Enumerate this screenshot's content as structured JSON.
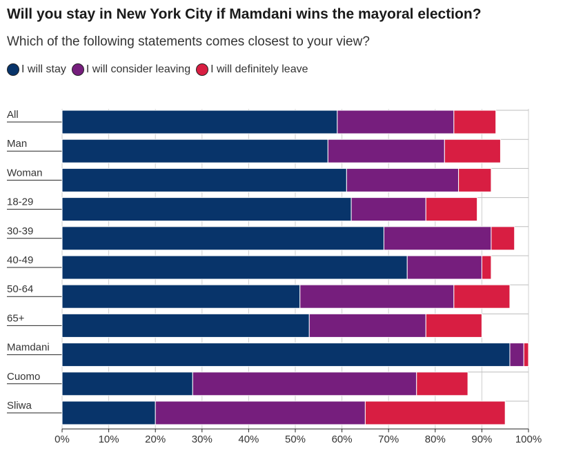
{
  "chart_data": {
    "type": "bar",
    "orientation": "horizontal",
    "stacked": true,
    "title": "Will you stay in New York City if Mamdani wins the mayoral election?",
    "subtitle": "Which of the following statements comes closest to your view?",
    "categories": [
      "All",
      "Man",
      "Woman",
      "18-29",
      "30-39",
      "40-49",
      "50-64",
      "65+",
      "Mamdani",
      "Cuomo",
      "Sliwa"
    ],
    "series": [
      {
        "name": "I will stay",
        "color": "#08346a",
        "values": [
          59,
          57,
          61,
          62,
          69,
          74,
          51,
          53,
          96,
          28,
          20
        ]
      },
      {
        "name": "I will consider leaving",
        "color": "#761e7d",
        "values": [
          25,
          25,
          24,
          16,
          23,
          16,
          33,
          25,
          3,
          48,
          45
        ]
      },
      {
        "name": "I will definitely leave",
        "color": "#d81e42",
        "values": [
          9,
          12,
          7,
          11,
          5,
          2,
          12,
          12,
          1,
          11,
          30
        ]
      }
    ],
    "xlim": [
      0,
      100
    ],
    "xticks": [
      "0%",
      "10%",
      "20%",
      "30%",
      "40%",
      "50%",
      "60%",
      "70%",
      "80%",
      "90%",
      "100%"
    ],
    "grid": true,
    "legend": "top-left"
  }
}
